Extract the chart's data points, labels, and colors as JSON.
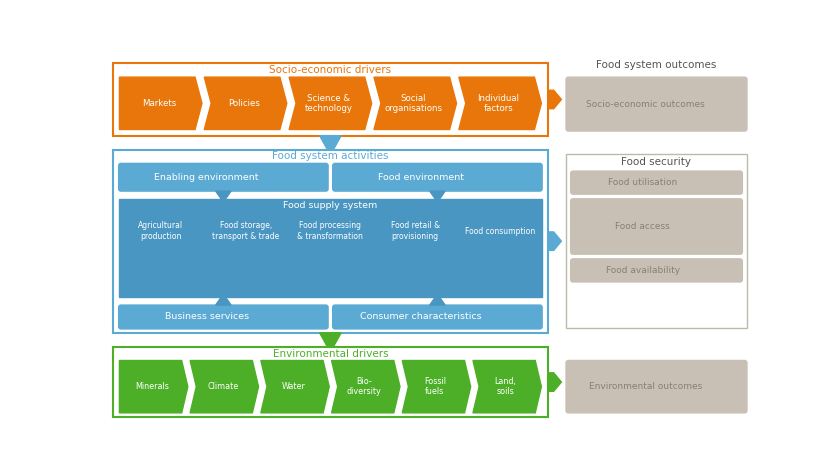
{
  "bg_color": "#ffffff",
  "orange_color": "#E8760A",
  "blue_color": "#5BAAD4",
  "blue_dark": "#4A96C2",
  "green_color": "#4CAF27",
  "gray_box": "#C8C0B4",
  "gray_light": "#D8D0C4",
  "white": "#ffffff",
  "socio_title": "Socio-economic drivers",
  "food_act_title": "Food system activities",
  "env_title": "Environmental drivers",
  "outcomes_title": "Food system outcomes",
  "food_sec_title": "Food security",
  "orange_items": [
    "Markets",
    "Policies",
    "Science &\ntechnology",
    "Social\norganisations",
    "Individual\nfactors"
  ],
  "green_items": [
    "Minerals",
    "Climate",
    "Water",
    "Bio-\ndiversity",
    "Fossil\nfuels",
    "Land,\nsoils"
  ],
  "food_supply_items": [
    "Agricultural\nproduction",
    "Food storage,\ntransport & trade",
    "Food processing\n& transformation",
    "Food retail &\nprovisioning",
    "Food consumption"
  ],
  "food_sec_items": [
    "Food utilisation",
    "Food access",
    "Food availability"
  ],
  "right_col_title": "Food system outcomes",
  "right_col_items_top": "Socio-economic outcomes",
  "right_col_items_bot": "Environmental outcomes"
}
